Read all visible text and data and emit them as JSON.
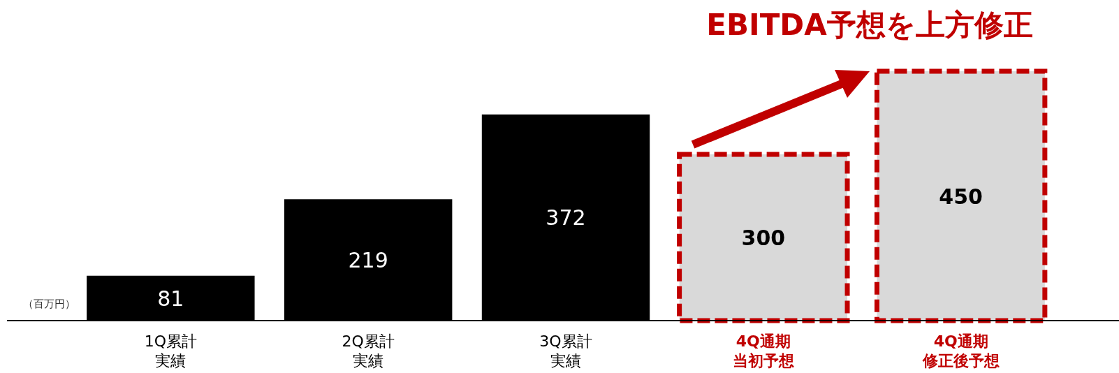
{
  "chart_data": {
    "type": "bar",
    "title": "EBITDA予想を上方修正",
    "categories": [
      "1Q累計実績",
      "2Q累計実績",
      "3Q累計実績",
      "4Q通期当初予想",
      "4Q通期修正後予想"
    ],
    "series": [
      {
        "color": "#000000",
        "values": [
          81,
          219,
          372,
          null,
          null
        ]
      },
      {
        "color": "#d9d9d9",
        "line_style": "dashed",
        "values": [
          null,
          null,
          null,
          300,
          450
        ]
      }
    ],
    "data_labels": true,
    "annotations": [
      "（百万円）"
    ]
  }
}
